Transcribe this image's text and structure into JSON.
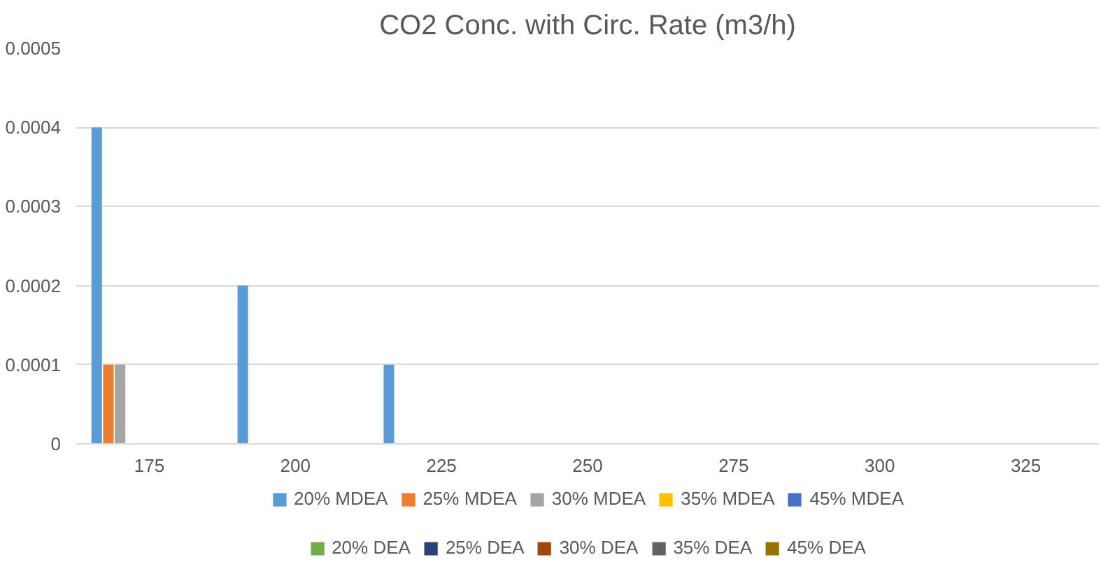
{
  "chart_data": {
    "type": "bar",
    "title": "CO2 Conc. with Circ. Rate (m3/h)",
    "categories": [
      "175",
      "200",
      "225",
      "250",
      "275",
      "300",
      "325"
    ],
    "series": [
      {
        "name": "20% MDEA",
        "color": "#5b9bd5",
        "values": [
          0.0004,
          0.0002,
          0.0001,
          0,
          0,
          0,
          0
        ]
      },
      {
        "name": "25% MDEA",
        "color": "#ed7d31",
        "values": [
          0.0001,
          0,
          0,
          0,
          0,
          0,
          0
        ]
      },
      {
        "name": "30% MDEA",
        "color": "#a5a5a5",
        "values": [
          0.0001,
          0,
          0,
          0,
          0,
          0,
          0
        ]
      },
      {
        "name": "35% MDEA",
        "color": "#ffc000",
        "values": [
          0,
          0,
          0,
          0,
          0,
          0,
          0
        ]
      },
      {
        "name": "45% MDEA",
        "color": "#4472c4",
        "values": [
          0,
          0,
          0,
          0,
          0,
          0,
          0
        ]
      },
      {
        "name": "20% DEA",
        "color": "#70ad47",
        "values": [
          0,
          0,
          0,
          0,
          0,
          0,
          0
        ]
      },
      {
        "name": "25% DEA",
        "color": "#264478",
        "values": [
          0,
          0,
          0,
          0,
          0,
          0,
          0
        ]
      },
      {
        "name": "30% DEA",
        "color": "#9e480e",
        "values": [
          0,
          0,
          0,
          0,
          0,
          0,
          0
        ]
      },
      {
        "name": "35% DEA",
        "color": "#636363",
        "values": [
          0,
          0,
          0,
          0,
          0,
          0,
          0
        ]
      },
      {
        "name": "45% DEA",
        "color": "#997300",
        "values": [
          0,
          0,
          0,
          0,
          0,
          0,
          0
        ]
      }
    ],
    "ylim": [
      0,
      0.0005
    ],
    "yticks": [
      0,
      0.0001,
      0.0002,
      0.0003,
      0.0004,
      0.0005
    ],
    "grid": "y",
    "legend": "bottom"
  }
}
